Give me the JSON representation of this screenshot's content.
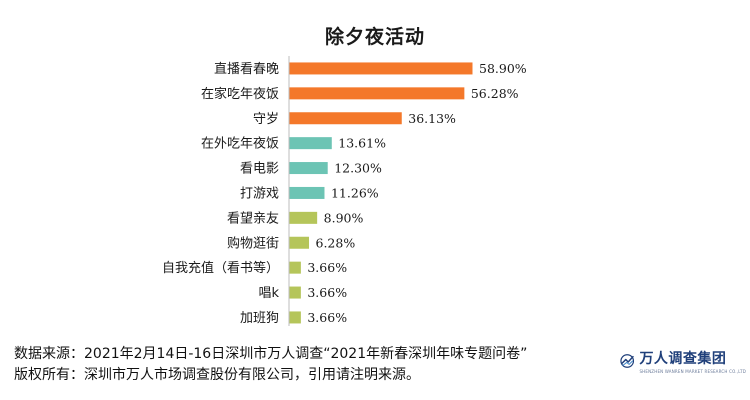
{
  "chart_data": {
    "type": "bar",
    "orientation": "horizontal",
    "title": "除夕夜活动",
    "categories": [
      "直播看春晚",
      "在家吃年夜饭",
      "守岁",
      "在外吃年夜饭",
      "看电影",
      "打游戏",
      "看望亲友",
      "购物逛街",
      "自我充值（看书等）",
      "唱k",
      "加班狗"
    ],
    "values": [
      58.9,
      56.28,
      36.13,
      13.61,
      12.3,
      11.26,
      8.9,
      6.28,
      3.66,
      3.66,
      3.66
    ],
    "value_labels": [
      "58.90%",
      "56.28%",
      "36.13%",
      "13.61%",
      "12.30%",
      "11.26%",
      "8.90%",
      "6.28%",
      "3.66%",
      "3.66%",
      "3.66%"
    ],
    "bar_colors": [
      "#F4782A",
      "#F4782A",
      "#F4782A",
      "#6CC4B4",
      "#6CC4B4",
      "#6CC4B4",
      "#B5C55A",
      "#B5C55A",
      "#B5C55A",
      "#B5C55A",
      "#B5C55A"
    ],
    "xlim": [
      0,
      60
    ],
    "grid": false,
    "legend": "none"
  },
  "footer": {
    "source": "数据来源：2021年2月14日-16日深圳市万人调查“2021年新春深圳年味专题问卷”",
    "copyright": "版权所有：深圳市万人市场调查股份有限公司，引用请注明来源。"
  },
  "logo": {
    "name": "万人调查集团",
    "subtitle": "SHENZHEN WANREN MARKET RESEARCH CO.,LTD",
    "icon": "wanren-logo-mark"
  }
}
